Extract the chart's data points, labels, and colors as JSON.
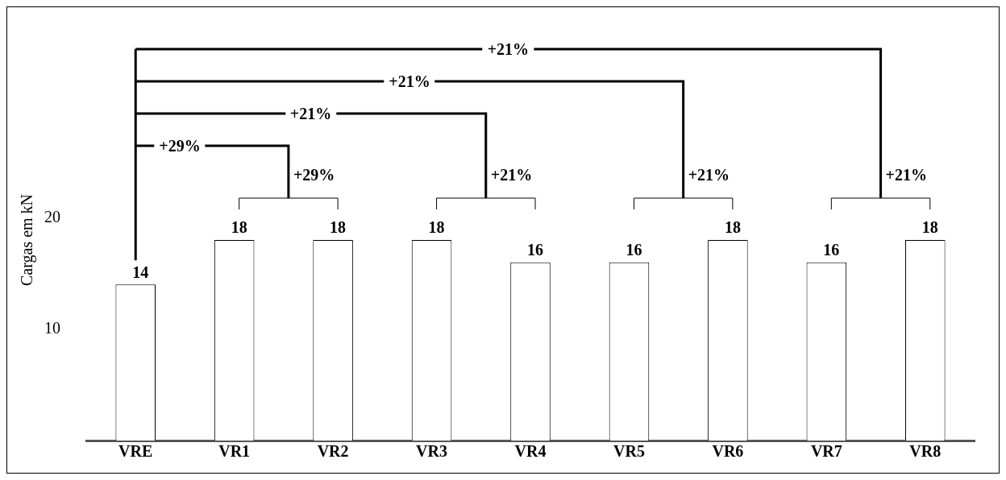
{
  "chart_data": {
    "type": "bar",
    "ylabel": "Cargas em kN",
    "categories": [
      "VRE",
      "VR1",
      "VR2",
      "VR3",
      "VR4",
      "VR5",
      "VR6",
      "VR7",
      "VR8"
    ],
    "values": [
      14,
      18,
      18,
      18,
      16,
      16,
      18,
      16,
      18
    ],
    "color": "#ffffff",
    "ylim": [
      0,
      36
    ],
    "yticks": [
      10,
      20
    ],
    "grid": false,
    "legend": false,
    "data_labels": true,
    "annotations": [
      "+29%",
      "+29%",
      "+21%",
      "+21%",
      "+21%",
      "+21%",
      "+21%",
      "+21%"
    ]
  }
}
